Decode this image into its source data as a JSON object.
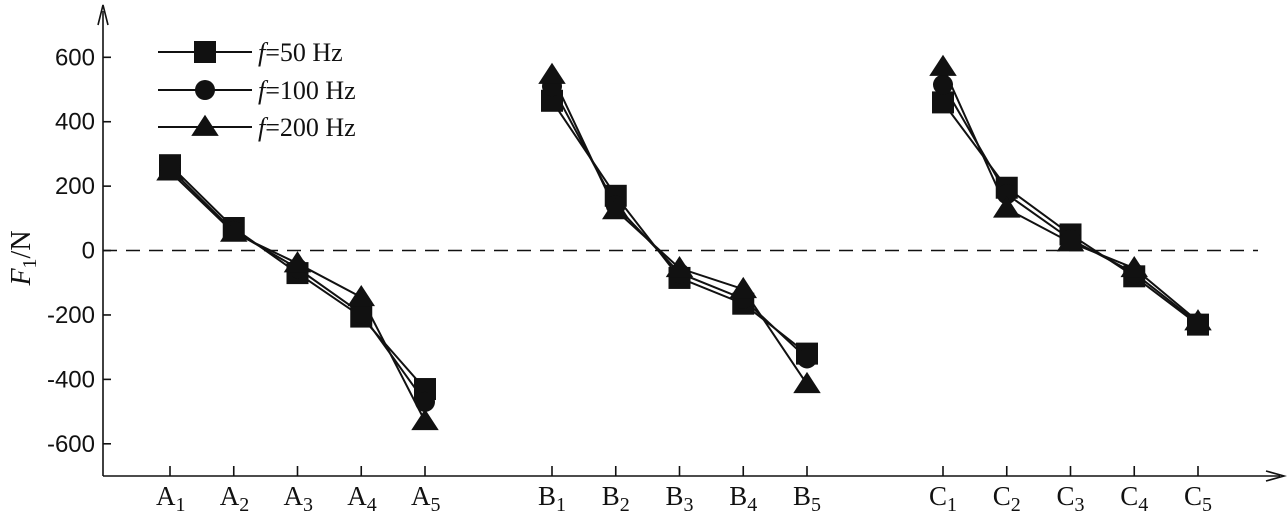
{
  "chart_data": {
    "type": "line",
    "title": "",
    "xlabel": "",
    "ylabel": "F",
    "ylabel_subscript": "1",
    "ylabel_unit": "/N",
    "ylim": [
      -700,
      750
    ],
    "yticks": [
      -600,
      -400,
      -200,
      0,
      200,
      400,
      600
    ],
    "ytick_labels": [
      "-600",
      "-400",
      "-200",
      "0",
      "200",
      "400",
      "600"
    ],
    "grid": false,
    "legend_position": "top-left",
    "reference_line": {
      "y": 0,
      "style": "dashed"
    },
    "groups": [
      {
        "name": "A",
        "categories": [
          "A1",
          "A2",
          "A3",
          "A4",
          "A5"
        ]
      },
      {
        "name": "B",
        "categories": [
          "B1",
          "B2",
          "B3",
          "B4",
          "B5"
        ]
      },
      {
        "name": "C",
        "categories": [
          "C1",
          "C2",
          "C3",
          "C4",
          "C5"
        ]
      }
    ],
    "category_labels": [
      {
        "base": "A",
        "sub": "1"
      },
      {
        "base": "A",
        "sub": "2"
      },
      {
        "base": "A",
        "sub": "3"
      },
      {
        "base": "A",
        "sub": "4"
      },
      {
        "base": "A",
        "sub": "5"
      },
      {
        "base": "B",
        "sub": "1"
      },
      {
        "base": "B",
        "sub": "2"
      },
      {
        "base": "B",
        "sub": "3"
      },
      {
        "base": "B",
        "sub": "4"
      },
      {
        "base": "B",
        "sub": "5"
      },
      {
        "base": "C",
        "sub": "1"
      },
      {
        "base": "C",
        "sub": "2"
      },
      {
        "base": "C",
        "sub": "3"
      },
      {
        "base": "C",
        "sub": "4"
      },
      {
        "base": "C",
        "sub": "5"
      }
    ],
    "series": [
      {
        "name": "f=50Hz",
        "legend_italic": "f",
        "legend_rest": "=50 Hz",
        "marker": "square",
        "values": [
          [
            265,
            70,
            -70,
            -205,
            -430
          ],
          [
            465,
            170,
            -85,
            -165,
            -320
          ],
          [
            460,
            195,
            50,
            -80,
            -230
          ]
        ]
      },
      {
        "name": "f=100Hz",
        "legend_italic": "f",
        "legend_rest": "=100 Hz",
        "marker": "circle",
        "values": [
          [
            255,
            60,
            -55,
            -195,
            -470
          ],
          [
            510,
            140,
            -70,
            -150,
            -335
          ],
          [
            515,
            175,
            35,
            -70,
            -225
          ]
        ]
      },
      {
        "name": "f=200Hz",
        "legend_italic": "f",
        "legend_rest": "=200 Hz",
        "marker": "triangle",
        "values": [
          [
            245,
            55,
            -40,
            -145,
            -530
          ],
          [
            545,
            125,
            -55,
            -120,
            -415
          ],
          [
            570,
            130,
            25,
            -55,
            -220
          ]
        ]
      }
    ],
    "colors": {
      "line": "#111111",
      "marker": "#111111",
      "background": "#ffffff"
    }
  }
}
